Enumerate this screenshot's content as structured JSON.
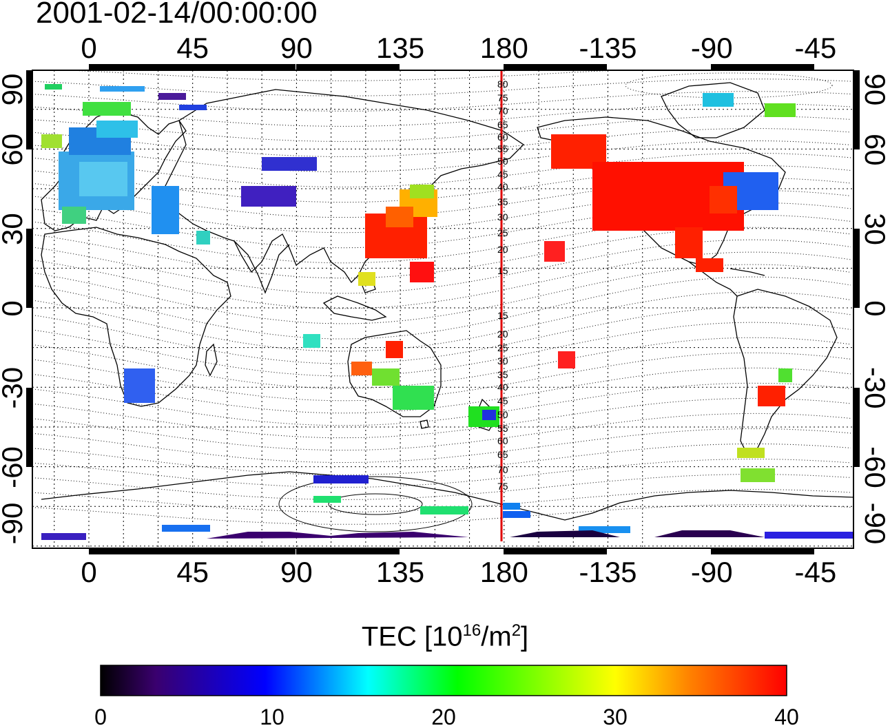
{
  "title": "2001-02-14/00:00:00",
  "map": {
    "top_ticks": [
      "0",
      "45",
      "90",
      "135",
      "180",
      "-135",
      "-90",
      "-45"
    ],
    "bottom_ticks": [
      "0",
      "45",
      "90",
      "135",
      "180",
      "-135",
      "-90",
      "-45"
    ],
    "left_ticks": [
      "90",
      "60",
      "30",
      "0",
      "-30",
      "-60",
      "-90"
    ],
    "right_ticks": [
      "90",
      "60",
      "30",
      "0",
      "-30",
      "-60",
      "-90"
    ],
    "magnetic_latitude_labels": [
      "80",
      "75",
      "70",
      "65",
      "60",
      "55",
      "50",
      "45",
      "40",
      "35",
      "30",
      "25",
      "20",
      "15",
      "15",
      "20",
      "25",
      "30",
      "35",
      "40",
      "45",
      "50",
      "55",
      "60",
      "65",
      "70",
      "75"
    ],
    "colors": {
      "dateline": "#e00000",
      "frame": "#000000"
    }
  },
  "colorbar": {
    "label_main": "TEC  [10",
    "label_sup1": "16",
    "label_mid": "/m",
    "label_sup2": "2",
    "label_end": "]",
    "ticks": [
      "0",
      "10",
      "20",
      "30",
      "40"
    ],
    "range": [
      0,
      40
    ],
    "stops": [
      "#000000",
      "#3a006e",
      "#0000ff",
      "#00ffff",
      "#00ff00",
      "#ffff00",
      "#ff8000",
      "#ff0000"
    ]
  }
}
